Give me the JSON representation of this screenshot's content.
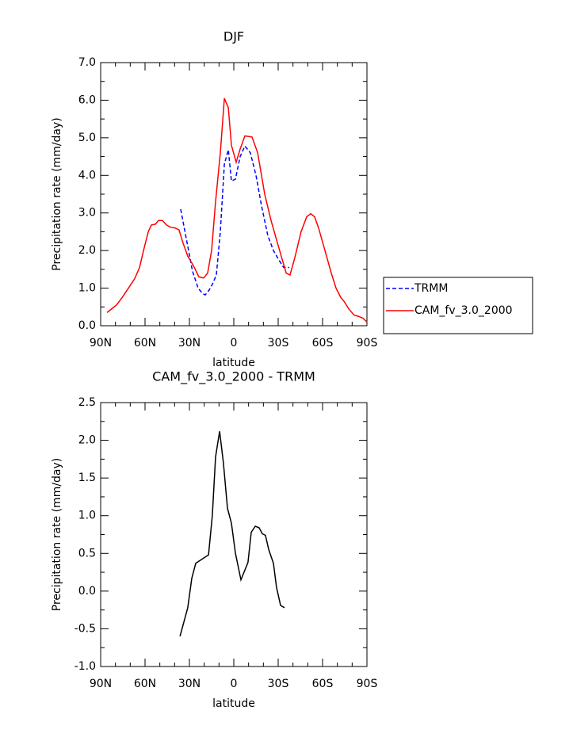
{
  "chart_data": [
    {
      "type": "line",
      "title": "DJF",
      "xlabel": "latitude",
      "ylabel": "Precipitation rate (mm/day)",
      "xlim": [
        90,
        -90
      ],
      "xticks": [
        {
          "value": 90,
          "label": "90N"
        },
        {
          "value": 60,
          "label": "60N"
        },
        {
          "value": 30,
          "label": "30N"
        },
        0,
        {
          "value": -30,
          "label": "30S"
        },
        {
          "value": -60,
          "label": "60S"
        },
        {
          "value": -90,
          "label": "90S"
        }
      ],
      "ylim": [
        0,
        7
      ],
      "yticks": [
        {
          "value": 0,
          "label": "0.0"
        },
        {
          "value": 1,
          "label": "1.0"
        },
        {
          "value": 2,
          "label": "2.0"
        },
        {
          "value": 3,
          "label": "3.0"
        },
        {
          "value": 4,
          "label": "4.0"
        },
        {
          "value": 5,
          "label": "5.0"
        },
        {
          "value": 6,
          "label": "6.0"
        },
        {
          "value": 7,
          "label": "7.0"
        }
      ],
      "legend": "right",
      "series": [
        {
          "name": "TRMM",
          "color": "#0000ff",
          "dash": true,
          "x": [
            35.9,
            27.9,
            24.1,
            20.9,
            19.3,
            16.6,
            14.5,
            11.8,
            9.1,
            6.4,
            3.7,
            1.6,
            -1.1,
            -4.3,
            -7.5,
            -11.2,
            -15,
            -18.7,
            -23,
            -26.8,
            -30.5,
            -33.7,
            -37.5
          ],
          "values": [
            3.1,
            1.45,
            1.0,
            0.85,
            0.82,
            0.95,
            1.1,
            1.35,
            2.5,
            4.3,
            4.68,
            3.85,
            3.9,
            4.5,
            4.78,
            4.6,
            4.0,
            3.2,
            2.4,
            2.0,
            1.75,
            1.55,
            1.55
          ]
        },
        {
          "name": "CAM_fv_3.0_2000",
          "color": "#ff0000",
          "dash": false,
          "x": [
            85.7,
            79.3,
            75.5,
            71.2,
            67,
            63.7,
            61,
            57.8,
            55.7,
            53,
            50.9,
            48.2,
            45.5,
            42.8,
            39.6,
            37,
            34.3,
            31.1,
            27.3,
            23.6,
            20.4,
            17.7,
            15,
            12.3,
            9.1,
            6.4,
            3.7,
            1.6,
            -1.6,
            -4.3,
            -7.5,
            -12.3,
            -16.1,
            -20.9,
            -25.2,
            -29.5,
            -35.4,
            -38,
            -41.2,
            -45.5,
            -49.3,
            -52,
            -54.6,
            -57.3,
            -61.6,
            -65.9,
            -69.1,
            -72.3,
            -74.5,
            -77.7,
            -81.4,
            -84.1,
            -87.3,
            -90
          ],
          "values": [
            0.35,
            0.55,
            0.75,
            1.0,
            1.25,
            1.55,
            2.0,
            2.5,
            2.68,
            2.7,
            2.8,
            2.8,
            2.68,
            2.62,
            2.6,
            2.55,
            2.2,
            1.85,
            1.6,
            1.3,
            1.27,
            1.4,
            2.0,
            3.3,
            4.6,
            6.05,
            5.8,
            4.8,
            4.35,
            4.7,
            5.05,
            5.02,
            4.6,
            3.5,
            2.8,
            2.2,
            1.4,
            1.35,
            1.8,
            2.5,
            2.9,
            2.98,
            2.9,
            2.6,
            2.0,
            1.4,
            1.0,
            0.75,
            0.65,
            0.45,
            0.28,
            0.25,
            0.2,
            0.1
          ]
        }
      ]
    },
    {
      "type": "line",
      "title": "CAM_fv_3.0_2000 - TRMM",
      "xlabel": "latitude",
      "ylabel": "Precipitation rate (mm/day)",
      "xlim": [
        90,
        -90
      ],
      "xticks": [
        {
          "value": 90,
          "label": "90N"
        },
        {
          "value": 60,
          "label": "60N"
        },
        {
          "value": 30,
          "label": "30N"
        },
        0,
        {
          "value": -30,
          "label": "30S"
        },
        {
          "value": -60,
          "label": "60S"
        },
        {
          "value": -90,
          "label": "90S"
        }
      ],
      "ylim": [
        -1,
        2.5
      ],
      "yticks": [
        {
          "value": -1,
          "label": "-1.0"
        },
        {
          "value": -0.5,
          "label": "-0.5"
        },
        {
          "value": 0,
          "label": "0.0"
        },
        0.5,
        {
          "value": 1,
          "label": "1.0"
        },
        1.5,
        {
          "value": 2,
          "label": "2.0"
        },
        2.5
      ],
      "series": [
        {
          "color": "#000000",
          "dash": false,
          "x": [
            36.4,
            31.1,
            28.4,
            25.7,
            17.1,
            14.5,
            12.3,
            9.6,
            7,
            4.3,
            1.6,
            -1.1,
            -4.8,
            -9.6,
            -11.8,
            -14.5,
            -17.1,
            -19.3,
            -21.4,
            -23.6,
            -26.8,
            -28.9,
            -31.6,
            -34.3
          ],
          "values": [
            -0.6,
            -0.22,
            0.17,
            0.37,
            0.48,
            1.0,
            1.78,
            2.12,
            1.7,
            1.1,
            0.9,
            0.5,
            0.15,
            0.38,
            0.78,
            0.86,
            0.84,
            0.76,
            0.74,
            0.55,
            0.37,
            0.05,
            -0.19,
            -0.22
          ]
        }
      ]
    }
  ]
}
